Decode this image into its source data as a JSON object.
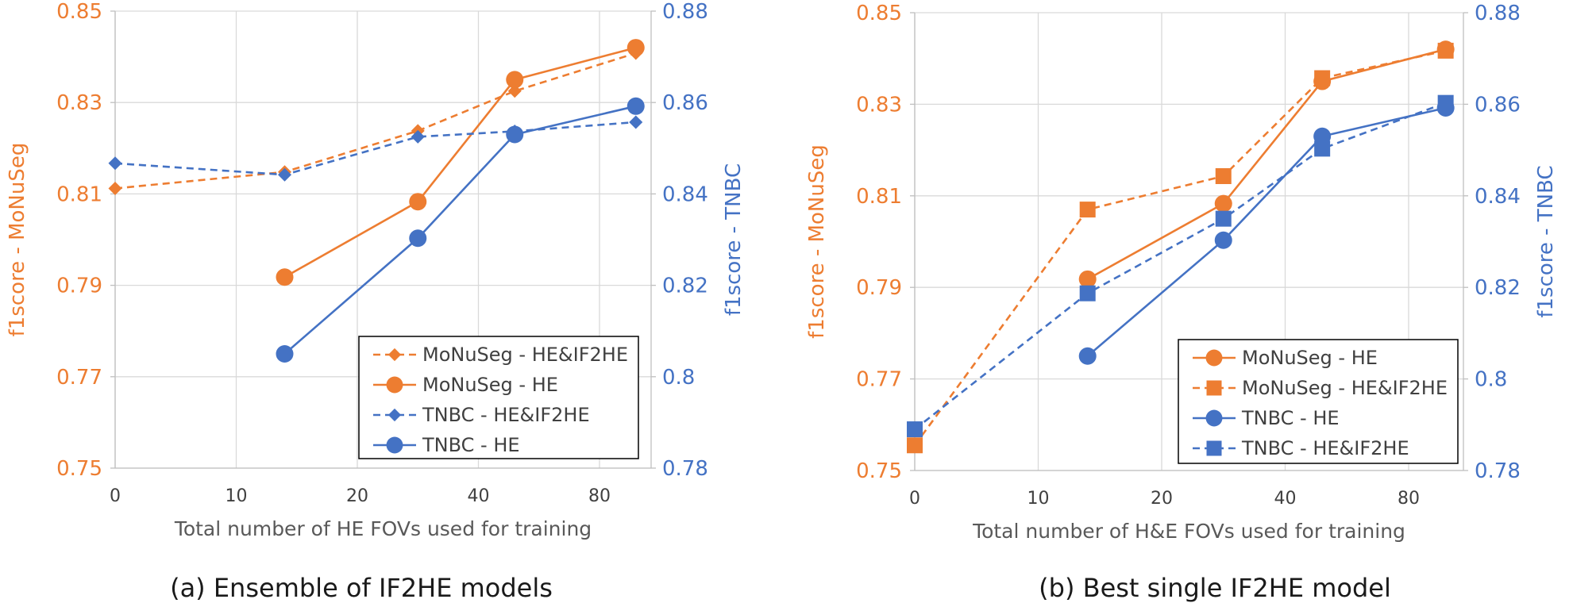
{
  "chart_data": [
    {
      "type": "line",
      "caption": "(a) Ensemble of IF2HE models",
      "xlabel": "Total number of HE FOVs used for training",
      "ylabel_left": "f1score - MoNuSeg",
      "ylabel_right": "f1score - TNBC",
      "categories": [
        "0",
        "10",
        "20",
        "40",
        "80"
      ],
      "ylim_left": [
        0.75,
        0.85
      ],
      "yticks_left": [
        "0.75",
        "0.77",
        "0.79",
        "0.81",
        "0.83",
        "0.85"
      ],
      "ylim_right": [
        0.78,
        0.88
      ],
      "yticks_right": [
        "0.78",
        "0.8",
        "0.82",
        "0.84",
        "0.86",
        "0.88"
      ],
      "grid": true,
      "legend_position": "bottom-right",
      "series": [
        {
          "name": "MoNuSeg - HE&IF2HE",
          "axis": "left",
          "color": "#ed7d31",
          "dash": true,
          "marker": "diamond",
          "points": [
            [
              0,
              0.8112
            ],
            [
              1.4,
              0.8148
            ],
            [
              2.5,
              0.8238
            ],
            [
              3.3,
              0.8325
            ],
            [
              4.3,
              0.8408
            ]
          ]
        },
        {
          "name": "MoNuSeg - HE",
          "axis": "left",
          "color": "#ed7d31",
          "dash": false,
          "marker": "circle",
          "points": [
            [
              1.4,
              0.7918
            ],
            [
              2.5,
              0.8083
            ],
            [
              3.3,
              0.835
            ],
            [
              4.3,
              0.842
            ]
          ]
        },
        {
          "name": "TNBC - HE&IF2HE",
          "axis": "right",
          "color": "#4472c4",
          "dash": true,
          "marker": "diamond",
          "points": [
            [
              0,
              0.8467
            ],
            [
              1.4,
              0.8442
            ],
            [
              2.5,
              0.8525
            ],
            [
              3.3,
              0.8537
            ],
            [
              4.3,
              0.8557
            ]
          ]
        },
        {
          "name": "TNBC - HE",
          "axis": "right",
          "color": "#4472c4",
          "dash": false,
          "marker": "circle",
          "points": [
            [
              1.4,
              0.805
            ],
            [
              2.5,
              0.8303
            ],
            [
              3.3,
              0.853
            ],
            [
              4.3,
              0.8592
            ]
          ]
        }
      ]
    },
    {
      "type": "line",
      "caption": "(b) Best single IF2HE model",
      "xlabel": "Total number of H&E FOVs used for training",
      "ylabel_left": "f1score - MoNuSeg",
      "ylabel_right": "f1score - TNBC",
      "categories": [
        "0",
        "10",
        "20",
        "40",
        "80"
      ],
      "ylim_left": [
        0.75,
        0.85
      ],
      "yticks_left": [
        "0.75",
        "0.77",
        "0.79",
        "0.81",
        "0.83",
        "0.85"
      ],
      "ylim_right": [
        0.78,
        0.88
      ],
      "yticks_right": [
        "0.78",
        "0.8",
        "0.82",
        "0.84",
        "0.86",
        "0.88"
      ],
      "grid": true,
      "legend_position": "bottom-right",
      "series": [
        {
          "name": "MoNuSeg - HE",
          "axis": "left",
          "color": "#ed7d31",
          "dash": false,
          "marker": "circle",
          "points": [
            [
              1.4,
              0.7918
            ],
            [
              2.5,
              0.8083
            ],
            [
              3.3,
              0.835
            ],
            [
              4.3,
              0.842
            ]
          ]
        },
        {
          "name": "MoNuSeg - HE&IF2HE",
          "axis": "left",
          "color": "#ed7d31",
          "dash": true,
          "marker": "square",
          "points": [
            [
              0,
              0.7555
            ],
            [
              1.4,
              0.807
            ],
            [
              2.5,
              0.8143
            ],
            [
              3.3,
              0.8357
            ],
            [
              4.3,
              0.8417
            ]
          ]
        },
        {
          "name": "TNBC - HE",
          "axis": "right",
          "color": "#4472c4",
          "dash": false,
          "marker": "circle",
          "points": [
            [
              1.4,
              0.805
            ],
            [
              2.5,
              0.8303
            ],
            [
              3.3,
              0.853
            ],
            [
              4.3,
              0.8592
            ]
          ]
        },
        {
          "name": "TNBC - HE&IF2HE",
          "axis": "right",
          "color": "#4472c4",
          "dash": true,
          "marker": "square",
          "points": [
            [
              0,
              0.789
            ],
            [
              1.4,
              0.8187
            ],
            [
              2.5,
              0.835
            ],
            [
              3.3,
              0.8503
            ],
            [
              4.3,
              0.8603
            ]
          ]
        }
      ]
    }
  ]
}
